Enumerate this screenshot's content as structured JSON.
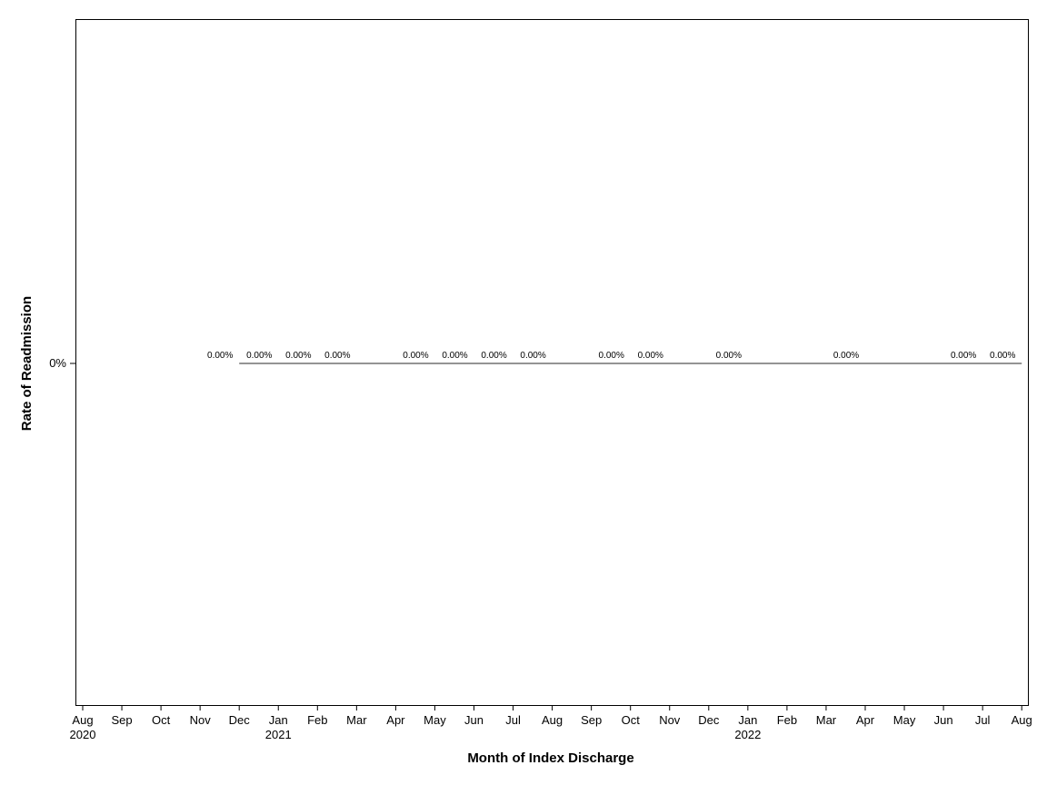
{
  "chart_data": {
    "type": "line",
    "title": "",
    "xlabel": "Month of Index Discharge",
    "ylabel": "Rate of Readmission",
    "x_ticks": [
      {
        "month": "Aug",
        "year": "2020"
      },
      {
        "month": "Sep",
        "year": ""
      },
      {
        "month": "Oct",
        "year": ""
      },
      {
        "month": "Nov",
        "year": ""
      },
      {
        "month": "Dec",
        "year": ""
      },
      {
        "month": "Jan",
        "year": "2021"
      },
      {
        "month": "Feb",
        "year": ""
      },
      {
        "month": "Mar",
        "year": ""
      },
      {
        "month": "Apr",
        "year": ""
      },
      {
        "month": "May",
        "year": ""
      },
      {
        "month": "Jun",
        "year": ""
      },
      {
        "month": "Jul",
        "year": ""
      },
      {
        "month": "Aug",
        "year": ""
      },
      {
        "month": "Sep",
        "year": ""
      },
      {
        "month": "Oct",
        "year": ""
      },
      {
        "month": "Nov",
        "year": ""
      },
      {
        "month": "Dec",
        "year": ""
      },
      {
        "month": "Jan",
        "year": "2022"
      },
      {
        "month": "Feb",
        "year": ""
      },
      {
        "month": "Mar",
        "year": ""
      },
      {
        "month": "Apr",
        "year": ""
      },
      {
        "month": "May",
        "year": ""
      },
      {
        "month": "Jun",
        "year": ""
      },
      {
        "month": "Jul",
        "year": ""
      },
      {
        "month": "Aug",
        "year": ""
      }
    ],
    "y_ticks": [
      "0%"
    ],
    "series": [
      {
        "points": [
          {
            "x": "2020-12",
            "y": 0,
            "label": "0.00%"
          },
          {
            "x": "2021-01",
            "y": 0,
            "label": "0.00%"
          },
          {
            "x": "2021-02",
            "y": 0,
            "label": "0.00%"
          },
          {
            "x": "2021-03",
            "y": 0,
            "label": "0.00%"
          },
          {
            "x": "2021-05",
            "y": 0,
            "label": "0.00%"
          },
          {
            "x": "2021-06",
            "y": 0,
            "label": "0.00%"
          },
          {
            "x": "2021-07",
            "y": 0,
            "label": "0.00%"
          },
          {
            "x": "2021-08",
            "y": 0,
            "label": "0.00%"
          },
          {
            "x": "2021-10",
            "y": 0,
            "label": "0.00%"
          },
          {
            "x": "2021-11",
            "y": 0,
            "label": "0.00%"
          },
          {
            "x": "2022-01",
            "y": 0,
            "label": "0.00%"
          },
          {
            "x": "2022-04",
            "y": 0,
            "label": "0.00%"
          },
          {
            "x": "2022-07",
            "y": 0,
            "label": "0.00%"
          },
          {
            "x": "2022-08",
            "y": 0,
            "label": "0.00%"
          }
        ]
      }
    ],
    "grid": false,
    "line_color": "#555555"
  }
}
